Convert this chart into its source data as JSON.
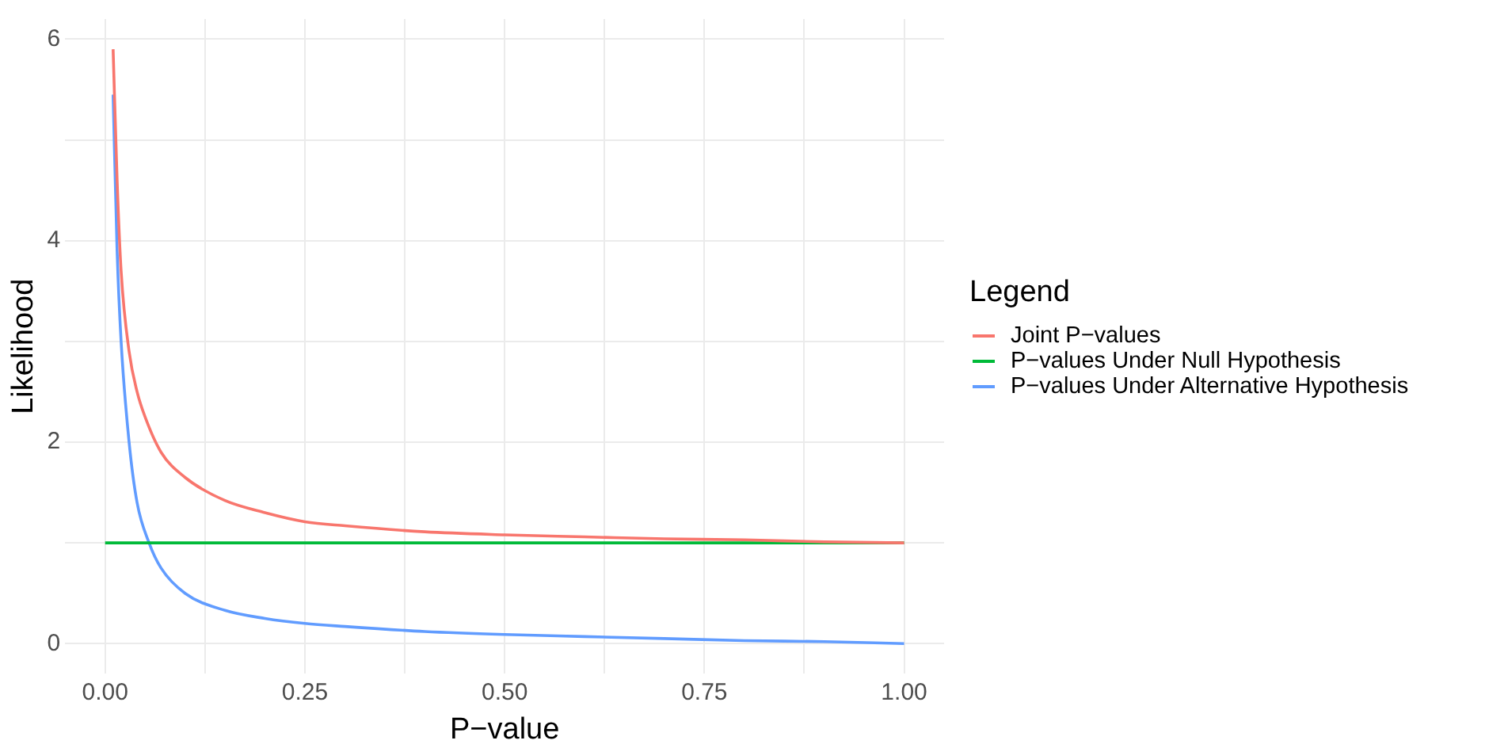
{
  "chart_data": {
    "type": "line",
    "xlabel": "P−value",
    "ylabel": "Likelihood",
    "legend_title": "Legend",
    "legend": "right",
    "grid": true,
    "marker": "none",
    "line_style": "solid",
    "xlim": [
      -0.05,
      1.05
    ],
    "ylim": [
      -0.3,
      6.2
    ],
    "xticks": [
      {
        "value": 0,
        "label": "0.00"
      },
      {
        "value": 0.125,
        "label": null
      },
      {
        "value": 0.25,
        "label": "0.25"
      },
      {
        "value": 0.375,
        "label": null
      },
      {
        "value": 0.5,
        "label": "0.50"
      },
      {
        "value": 0.625,
        "label": null
      },
      {
        "value": 0.75,
        "label": "0.75"
      },
      {
        "value": 0.875,
        "label": null
      },
      {
        "value": 1,
        "label": "1.00"
      }
    ],
    "yticks": [
      0,
      {
        "value": 1,
        "label": null
      },
      2,
      {
        "value": 3,
        "label": null
      },
      4,
      {
        "value": 5,
        "label": null
      },
      6
    ],
    "series": [
      {
        "name": "Joint P−values",
        "color": "#f8766d",
        "x": [
          0.01,
          0.015,
          0.02,
          0.03,
          0.04,
          0.05,
          0.07,
          0.1,
          0.15,
          0.2,
          0.25,
          0.3,
          0.4,
          0.5,
          0.6,
          0.7,
          0.8,
          0.9,
          1
        ],
        "values": [
          5.9,
          4.6,
          3.7,
          2.9,
          2.5,
          2.25,
          1.9,
          1.65,
          1.42,
          1.3,
          1.21,
          1.17,
          1.11,
          1.08,
          1.06,
          1.04,
          1.03,
          1.01,
          1.0
        ]
      },
      {
        "name": "P−values Under Null Hypothesis",
        "color": "#00ba38",
        "x": [
          0,
          1
        ],
        "values": [
          1,
          1
        ]
      },
      {
        "name": "P−values Under Alternative Hypothesis",
        "color": "#619cff",
        "x": [
          0.01,
          0.015,
          0.02,
          0.03,
          0.04,
          0.055,
          0.07,
          0.1,
          0.15,
          0.2,
          0.25,
          0.3,
          0.4,
          0.5,
          0.6,
          0.7,
          0.8,
          0.9,
          1
        ],
        "values": [
          5.45,
          3.9,
          3.0,
          2.0,
          1.4,
          1.0,
          0.75,
          0.5,
          0.33,
          0.25,
          0.2,
          0.17,
          0.12,
          0.09,
          0.07,
          0.05,
          0.03,
          0.02,
          0
        ]
      }
    ]
  }
}
